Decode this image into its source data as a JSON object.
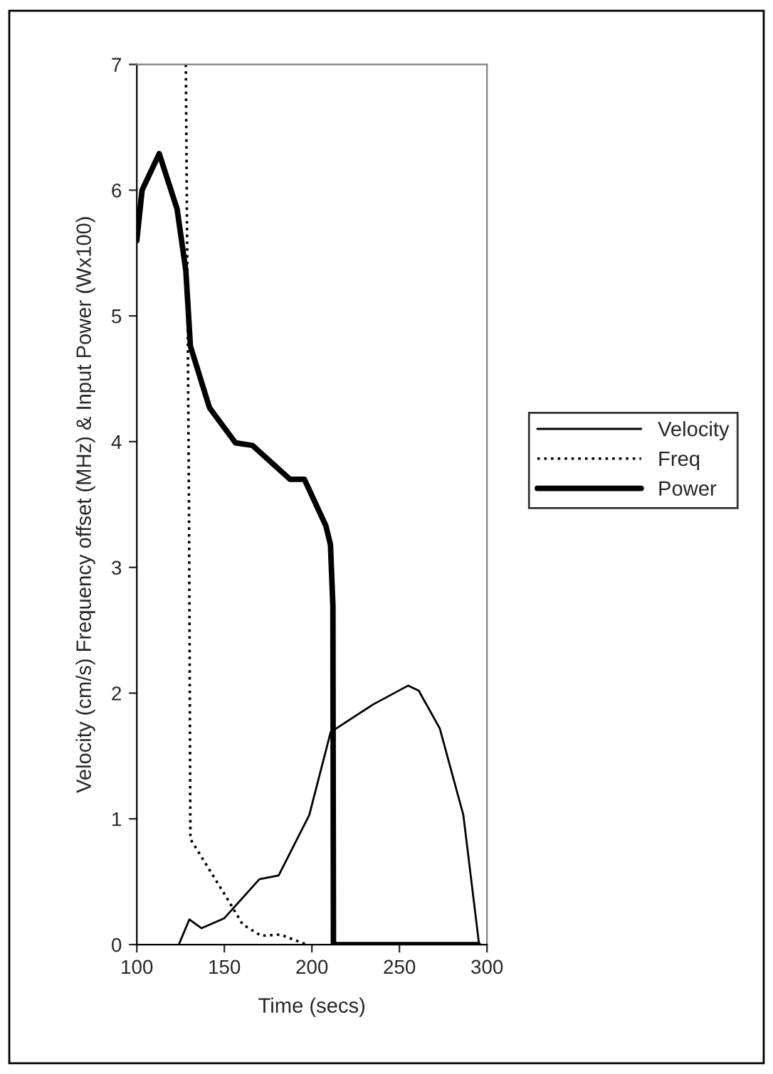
{
  "chart_data": {
    "type": "line",
    "xlabel": "Time (secs)",
    "ylabel": "Velocity (cm/s) Frequency offset (MHz) & Input Power (Wx100)",
    "xlim": [
      100,
      300
    ],
    "xticks": [
      100,
      150,
      200,
      250,
      300
    ],
    "ylim": [
      0,
      7
    ],
    "yticks": [
      0,
      1,
      2,
      3,
      4,
      5,
      6,
      7
    ],
    "grid": false,
    "legend": "right",
    "marker": "none",
    "series": [
      {
        "name": "Velocity",
        "color": "#000000",
        "line_style": "solid",
        "x": [
          124,
          130,
          137,
          150,
          170,
          181,
          198.5,
          210.7,
          235,
          255,
          261,
          273,
          286.5,
          295.5
        ],
        "values": [
          0,
          0.2,
          0.13,
          0.21,
          0.52,
          0.55,
          1.03,
          1.69,
          1.91,
          2.06,
          2.02,
          1.72,
          1.03,
          0
        ]
      },
      {
        "name": "Freq",
        "color": "#000000",
        "line_style": "dotted",
        "x": [
          128,
          129.8,
          130.6,
          151,
          160.5,
          171,
          182,
          197
        ],
        "values": [
          7,
          3.5,
          0.84,
          0.38,
          0.16,
          0.07,
          0.08,
          0
        ]
      },
      {
        "name": "Power",
        "color": "#000000",
        "line_style": "solid",
        "x": [
          100,
          103,
          112.8,
          123,
          128,
          130.6,
          141.5,
          156.4,
          166,
          187.5,
          195.7,
          208,
          210.6,
          212,
          212.3,
          295
        ],
        "values": [
          5.6,
          6.0,
          6.29,
          5.85,
          5.36,
          4.76,
          4.27,
          3.99,
          3.97,
          3.7,
          3.7,
          3.33,
          3.18,
          2.69,
          0,
          0
        ]
      }
    ]
  }
}
